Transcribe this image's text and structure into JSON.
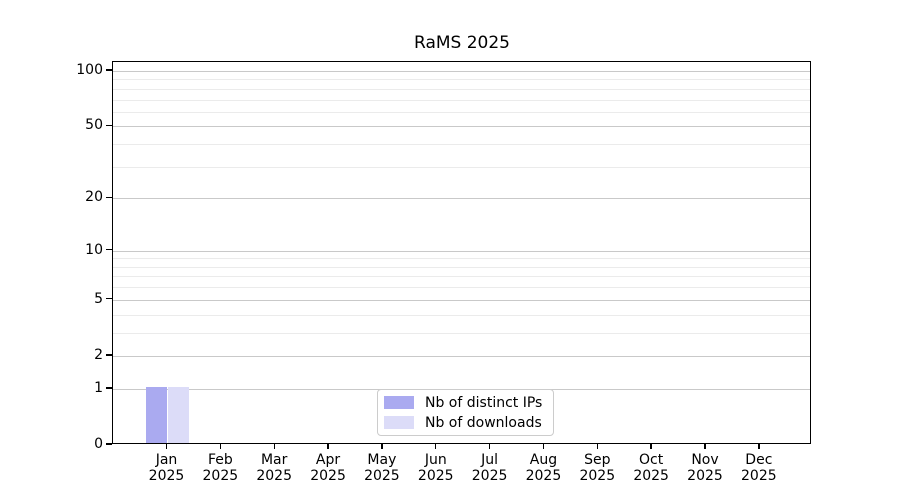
{
  "chart_data": {
    "type": "bar",
    "title": "RaMS 2025",
    "xlabel": "",
    "ylabel": "",
    "categories": [
      "Jan",
      "Feb",
      "Mar",
      "Apr",
      "May",
      "Jun",
      "Jul",
      "Aug",
      "Sep",
      "Oct",
      "Nov",
      "Dec"
    ],
    "category_year": "2025",
    "series": [
      {
        "name": "Nb of distinct IPs",
        "color": "#aaaaf0",
        "values": [
          1,
          0,
          0,
          0,
          0,
          0,
          0,
          0,
          0,
          0,
          0,
          0
        ]
      },
      {
        "name": "Nb of downloads",
        "color": "#dcdcf8",
        "values": [
          1,
          0,
          0,
          0,
          0,
          0,
          0,
          0,
          0,
          0,
          0,
          0
        ]
      }
    ],
    "y_axis": {
      "scale": "log1p",
      "major_ticks": [
        0,
        1,
        2,
        5,
        10,
        20,
        50,
        100
      ],
      "minor_gridlines": [
        3,
        4,
        6,
        7,
        8,
        9,
        30,
        40,
        60,
        70,
        80,
        90
      ],
      "ylim": [
        0,
        112
      ]
    },
    "grid": {
      "horizontal": true,
      "vertical": false,
      "major_color": "#c9c9c9",
      "minor_color": "#ebebeb"
    },
    "legend": {
      "position": "lower center",
      "entries": [
        "Nb of distinct IPs",
        "Nb of downloads"
      ]
    },
    "colors": {
      "background": "#ffffff",
      "axis": "#000000",
      "text": "#000000"
    }
  }
}
